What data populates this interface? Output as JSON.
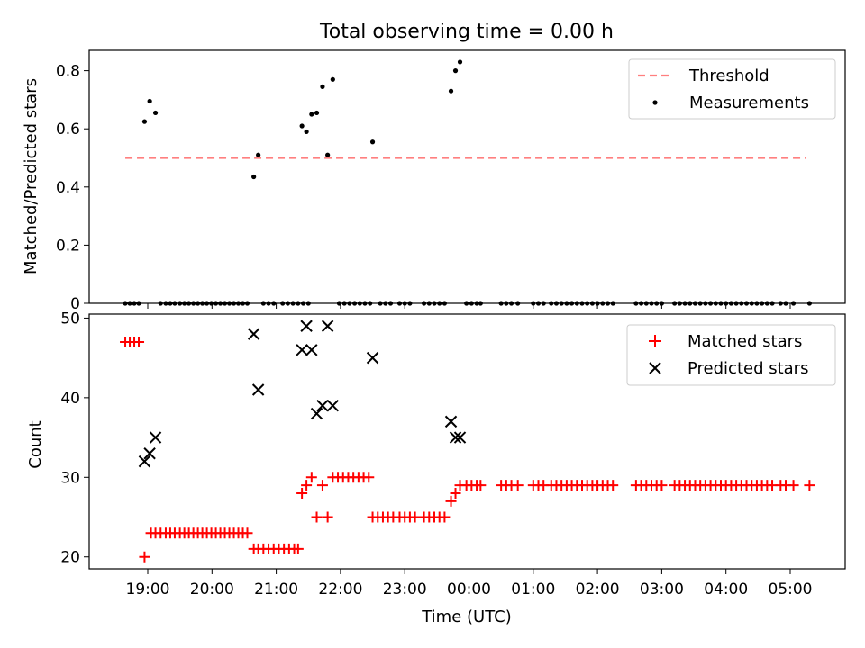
{
  "figure": {
    "title": "Total observing time = 0.00 h",
    "xlabel": "Time (UTC)",
    "x_ticks": [
      "19:00",
      "20:00",
      "21:00",
      "22:00",
      "23:00",
      "00:00",
      "01:00",
      "02:00",
      "03:00",
      "04:00",
      "05:00"
    ]
  },
  "colors": {
    "threshold": "#ff7f7f",
    "measurement": "#000000",
    "matched": "#ff0000",
    "predicted": "#000000"
  },
  "chart_data": [
    {
      "type": "scatter",
      "ylabel": "Matched/Predicted stars",
      "ylim": [
        0,
        0.87
      ],
      "y_ticks": [
        0.0,
        0.2,
        0.4,
        0.6,
        0.8
      ],
      "legend_position": "top-right",
      "threshold": {
        "name": "Threshold",
        "y": 0.5,
        "x_range": [
          -0.35,
          10.25
        ]
      },
      "series": [
        {
          "name": "Measurements",
          "marker": "dot",
          "points": [
            [
              -0.35,
              0
            ],
            [
              -0.28,
              0
            ],
            [
              -0.21,
              0
            ],
            [
              -0.14,
              0
            ],
            [
              -0.05,
              0.625
            ],
            [
              0.03,
              0.695
            ],
            [
              0.12,
              0.655
            ],
            [
              0.2,
              0
            ],
            [
              0.28,
              0
            ],
            [
              0.35,
              0
            ],
            [
              0.42,
              0
            ],
            [
              0.5,
              0
            ],
            [
              0.57,
              0
            ],
            [
              0.64,
              0
            ],
            [
              0.71,
              0
            ],
            [
              0.78,
              0
            ],
            [
              0.85,
              0
            ],
            [
              0.92,
              0
            ],
            [
              0.99,
              0
            ],
            [
              1.06,
              0
            ],
            [
              1.13,
              0
            ],
            [
              1.2,
              0
            ],
            [
              1.27,
              0
            ],
            [
              1.34,
              0
            ],
            [
              1.41,
              0
            ],
            [
              1.48,
              0
            ],
            [
              1.55,
              0
            ],
            [
              1.65,
              0.435
            ],
            [
              1.72,
              0.51
            ],
            [
              1.8,
              0
            ],
            [
              1.88,
              0
            ],
            [
              1.96,
              0
            ],
            [
              2.1,
              0
            ],
            [
              2.18,
              0
            ],
            [
              2.26,
              0
            ],
            [
              2.34,
              0
            ],
            [
              2.42,
              0
            ],
            [
              2.5,
              0
            ],
            [
              2.4,
              0.61
            ],
            [
              2.47,
              0.59
            ],
            [
              2.55,
              0.65
            ],
            [
              2.63,
              0.655
            ],
            [
              2.72,
              0.745
            ],
            [
              2.8,
              0.51
            ],
            [
              2.88,
              0.77
            ],
            [
              2.98,
              0
            ],
            [
              3.06,
              0
            ],
            [
              3.14,
              0
            ],
            [
              3.22,
              0
            ],
            [
              3.3,
              0
            ],
            [
              3.38,
              0
            ],
            [
              3.46,
              0
            ],
            [
              3.5,
              0.555
            ],
            [
              3.62,
              0
            ],
            [
              3.7,
              0
            ],
            [
              3.78,
              0
            ],
            [
              3.92,
              0
            ],
            [
              4.0,
              0
            ],
            [
              4.08,
              0
            ],
            [
              4.3,
              0
            ],
            [
              4.38,
              0
            ],
            [
              4.46,
              0
            ],
            [
              4.54,
              0
            ],
            [
              4.62,
              0
            ],
            [
              4.72,
              0.73
            ],
            [
              4.79,
              0.8
            ],
            [
              4.86,
              0.83
            ],
            [
              4.96,
              0
            ],
            [
              5.04,
              0
            ],
            [
              5.12,
              0
            ],
            [
              5.18,
              0
            ],
            [
              5.5,
              0
            ],
            [
              5.58,
              0
            ],
            [
              5.66,
              0
            ],
            [
              5.76,
              0
            ],
            [
              6.0,
              0
            ],
            [
              6.08,
              0
            ],
            [
              6.16,
              0
            ],
            [
              6.28,
              0
            ],
            [
              6.36,
              0
            ],
            [
              6.44,
              0
            ],
            [
              6.52,
              0
            ],
            [
              6.6,
              0
            ],
            [
              6.68,
              0
            ],
            [
              6.76,
              0
            ],
            [
              6.84,
              0
            ],
            [
              6.92,
              0
            ],
            [
              7.0,
              0
            ],
            [
              7.08,
              0
            ],
            [
              7.16,
              0
            ],
            [
              7.24,
              0
            ],
            [
              7.6,
              0
            ],
            [
              7.68,
              0
            ],
            [
              7.76,
              0
            ],
            [
              7.84,
              0
            ],
            [
              7.92,
              0
            ],
            [
              8.0,
              0
            ],
            [
              8.2,
              0
            ],
            [
              8.28,
              0
            ],
            [
              8.36,
              0
            ],
            [
              8.44,
              0
            ],
            [
              8.52,
              0
            ],
            [
              8.6,
              0
            ],
            [
              8.68,
              0
            ],
            [
              8.76,
              0
            ],
            [
              8.84,
              0
            ],
            [
              8.92,
              0
            ],
            [
              9.0,
              0
            ],
            [
              9.08,
              0
            ],
            [
              9.16,
              0
            ],
            [
              9.24,
              0
            ],
            [
              9.32,
              0
            ],
            [
              9.4,
              0
            ],
            [
              9.48,
              0
            ],
            [
              9.56,
              0
            ],
            [
              9.64,
              0
            ],
            [
              9.72,
              0
            ],
            [
              9.85,
              0
            ],
            [
              9.93,
              0
            ],
            [
              10.05,
              0
            ],
            [
              10.3,
              0
            ]
          ]
        }
      ]
    },
    {
      "type": "scatter",
      "ylabel": "Count",
      "ylim": [
        18.5,
        50.5
      ],
      "y_ticks": [
        20,
        30,
        40,
        50
      ],
      "legend_position": "top-right",
      "series": [
        {
          "name": "Matched stars",
          "marker": "plus",
          "points": [
            [
              -0.35,
              47
            ],
            [
              -0.28,
              47
            ],
            [
              -0.21,
              47
            ],
            [
              -0.14,
              47
            ],
            [
              -0.05,
              20
            ],
            [
              0.05,
              23
            ],
            [
              0.12,
              23
            ],
            [
              0.2,
              23
            ],
            [
              0.28,
              23
            ],
            [
              0.35,
              23
            ],
            [
              0.42,
              23
            ],
            [
              0.5,
              23
            ],
            [
              0.57,
              23
            ],
            [
              0.64,
              23
            ],
            [
              0.71,
              23
            ],
            [
              0.78,
              23
            ],
            [
              0.85,
              23
            ],
            [
              0.92,
              23
            ],
            [
              0.99,
              23
            ],
            [
              1.06,
              23
            ],
            [
              1.13,
              23
            ],
            [
              1.2,
              23
            ],
            [
              1.27,
              23
            ],
            [
              1.34,
              23
            ],
            [
              1.41,
              23
            ],
            [
              1.48,
              23
            ],
            [
              1.55,
              23
            ],
            [
              1.65,
              21
            ],
            [
              1.72,
              21
            ],
            [
              1.8,
              21
            ],
            [
              1.88,
              21
            ],
            [
              1.96,
              21
            ],
            [
              2.04,
              21
            ],
            [
              2.12,
              21
            ],
            [
              2.2,
              21
            ],
            [
              2.28,
              21
            ],
            [
              2.34,
              21
            ],
            [
              2.4,
              28
            ],
            [
              2.47,
              29
            ],
            [
              2.55,
              30
            ],
            [
              2.63,
              25
            ],
            [
              2.72,
              29
            ],
            [
              2.8,
              25
            ],
            [
              2.88,
              30
            ],
            [
              2.96,
              30
            ],
            [
              3.04,
              30
            ],
            [
              3.12,
              30
            ],
            [
              3.2,
              30
            ],
            [
              3.28,
              30
            ],
            [
              3.36,
              30
            ],
            [
              3.44,
              30
            ],
            [
              3.5,
              25
            ],
            [
              3.58,
              25
            ],
            [
              3.66,
              25
            ],
            [
              3.74,
              25
            ],
            [
              3.82,
              25
            ],
            [
              3.92,
              25
            ],
            [
              4.0,
              25
            ],
            [
              4.08,
              25
            ],
            [
              4.16,
              25
            ],
            [
              4.3,
              25
            ],
            [
              4.38,
              25
            ],
            [
              4.46,
              25
            ],
            [
              4.54,
              25
            ],
            [
              4.62,
              25
            ],
            [
              4.72,
              27
            ],
            [
              4.79,
              28
            ],
            [
              4.86,
              29
            ],
            [
              4.96,
              29
            ],
            [
              5.04,
              29
            ],
            [
              5.12,
              29
            ],
            [
              5.18,
              29
            ],
            [
              5.5,
              29
            ],
            [
              5.58,
              29
            ],
            [
              5.66,
              29
            ],
            [
              5.76,
              29
            ],
            [
              6.0,
              29
            ],
            [
              6.08,
              29
            ],
            [
              6.16,
              29
            ],
            [
              6.28,
              29
            ],
            [
              6.36,
              29
            ],
            [
              6.44,
              29
            ],
            [
              6.52,
              29
            ],
            [
              6.6,
              29
            ],
            [
              6.68,
              29
            ],
            [
              6.76,
              29
            ],
            [
              6.84,
              29
            ],
            [
              6.92,
              29
            ],
            [
              7.0,
              29
            ],
            [
              7.08,
              29
            ],
            [
              7.16,
              29
            ],
            [
              7.24,
              29
            ],
            [
              7.6,
              29
            ],
            [
              7.68,
              29
            ],
            [
              7.76,
              29
            ],
            [
              7.84,
              29
            ],
            [
              7.92,
              29
            ],
            [
              8.0,
              29
            ],
            [
              8.2,
              29
            ],
            [
              8.28,
              29
            ],
            [
              8.36,
              29
            ],
            [
              8.44,
              29
            ],
            [
              8.52,
              29
            ],
            [
              8.6,
              29
            ],
            [
              8.68,
              29
            ],
            [
              8.76,
              29
            ],
            [
              8.84,
              29
            ],
            [
              8.92,
              29
            ],
            [
              9.0,
              29
            ],
            [
              9.08,
              29
            ],
            [
              9.16,
              29
            ],
            [
              9.24,
              29
            ],
            [
              9.32,
              29
            ],
            [
              9.4,
              29
            ],
            [
              9.48,
              29
            ],
            [
              9.56,
              29
            ],
            [
              9.64,
              29
            ],
            [
              9.72,
              29
            ],
            [
              9.85,
              29
            ],
            [
              9.93,
              29
            ],
            [
              10.05,
              29
            ],
            [
              10.3,
              29
            ]
          ]
        },
        {
          "name": "Predicted stars",
          "marker": "x",
          "points": [
            [
              -0.05,
              32
            ],
            [
              0.03,
              33
            ],
            [
              0.12,
              35
            ],
            [
              1.65,
              48
            ],
            [
              1.72,
              41
            ],
            [
              2.4,
              46
            ],
            [
              2.47,
              49
            ],
            [
              2.55,
              46
            ],
            [
              2.63,
              38
            ],
            [
              2.72,
              39
            ],
            [
              2.8,
              49
            ],
            [
              2.88,
              39
            ],
            [
              3.5,
              45
            ],
            [
              4.72,
              37
            ],
            [
              4.79,
              35
            ],
            [
              4.86,
              35
            ]
          ]
        }
      ]
    }
  ]
}
